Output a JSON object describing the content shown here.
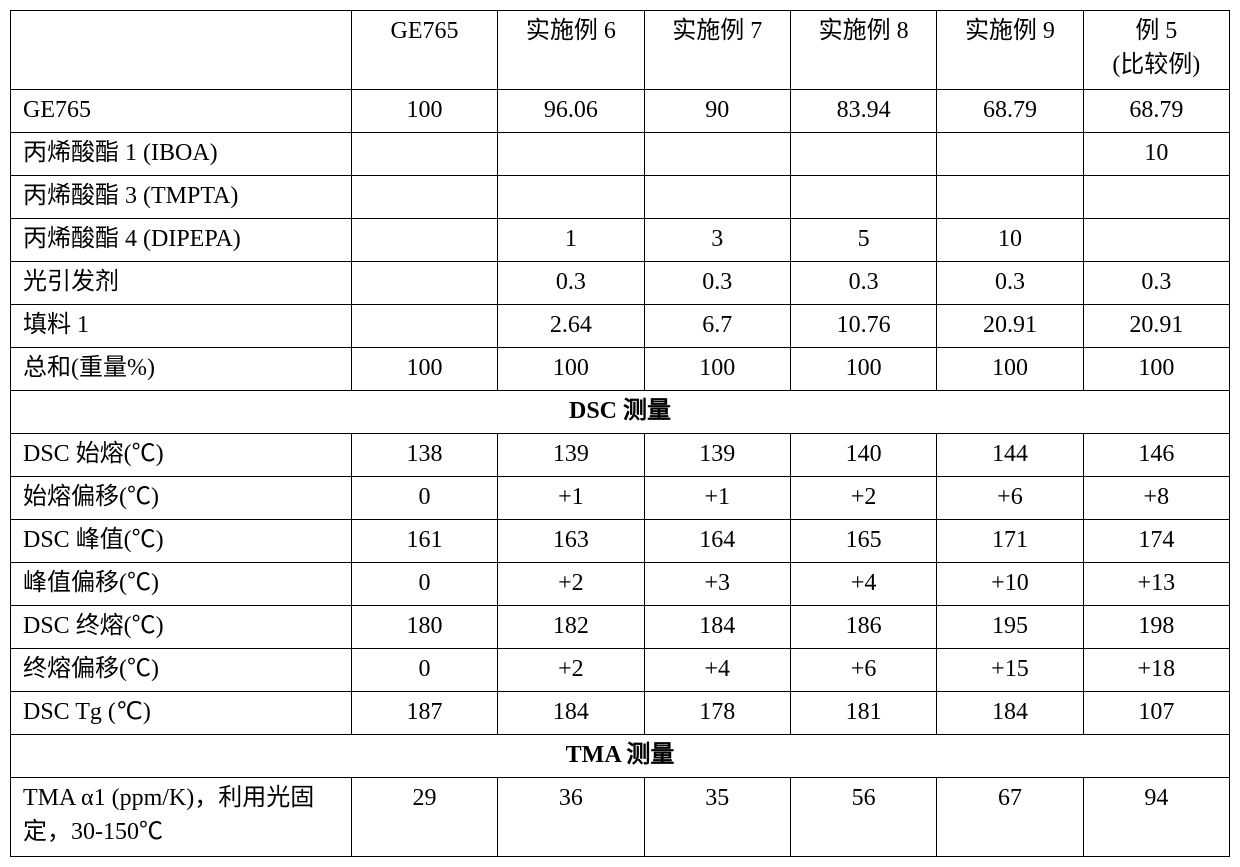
{
  "table": {
    "columns": [
      "",
      "GE765",
      "实施例 6",
      "实施例 7",
      "实施例 8",
      "实施例 9",
      "例 5\n(比较例)"
    ],
    "rows": [
      {
        "label": "GE765",
        "cells": [
          "100",
          "96.06",
          "90",
          "83.94",
          "68.79",
          "68.79"
        ]
      },
      {
        "label": "丙烯酸酯 1 (IBOA)",
        "cells": [
          "",
          "",
          "",
          "",
          "",
          "10"
        ]
      },
      {
        "label": "丙烯酸酯 3 (TMPTA)",
        "cells": [
          "",
          "",
          "",
          "",
          "",
          ""
        ]
      },
      {
        "label": "丙烯酸酯 4 (DIPEPA)",
        "cells": [
          "",
          "1",
          "3",
          "5",
          "10",
          ""
        ]
      },
      {
        "label": "光引发剂",
        "cells": [
          "",
          "0.3",
          "0.3",
          "0.3",
          "0.3",
          "0.3"
        ]
      },
      {
        "label": "填料 1",
        "cells": [
          "",
          "2.64",
          "6.7",
          "10.76",
          "20.91",
          "20.91"
        ]
      },
      {
        "label": "总和(重量%)",
        "cells": [
          "100",
          "100",
          "100",
          "100",
          "100",
          "100"
        ]
      }
    ],
    "section1_title": "DSC 测量",
    "rows2": [
      {
        "label": "DSC 始熔(℃)",
        "cells": [
          "138",
          "139",
          "139",
          "140",
          "144",
          "146"
        ]
      },
      {
        "label": "始熔偏移(℃)",
        "cells": [
          "0",
          "+1",
          "+1",
          "+2",
          "+6",
          "+8"
        ]
      },
      {
        "label": "DSC 峰值(℃)",
        "cells": [
          "161",
          "163",
          "164",
          "165",
          "171",
          "174"
        ]
      },
      {
        "label": "峰值偏移(℃)",
        "cells": [
          "0",
          "+2",
          "+3",
          "+4",
          "+10",
          "+13"
        ]
      },
      {
        "label": "DSC 终熔(℃)",
        "cells": [
          "180",
          "182",
          "184",
          "186",
          "195",
          "198"
        ]
      },
      {
        "label": "终熔偏移(℃)",
        "cells": [
          "0",
          "+2",
          "+4",
          "+6",
          "+15",
          "+18"
        ]
      },
      {
        "label": "DSC Tg (℃)",
        "cells": [
          "187",
          "184",
          "178",
          "181",
          "184",
          "107"
        ]
      }
    ],
    "section2_title": "TMA 测量",
    "rows3": [
      {
        "label": "TMA α1 (ppm/K)，利用光固定，30-150℃",
        "cells": [
          "29",
          "36",
          "35",
          "56",
          "67",
          "94"
        ]
      }
    ]
  }
}
